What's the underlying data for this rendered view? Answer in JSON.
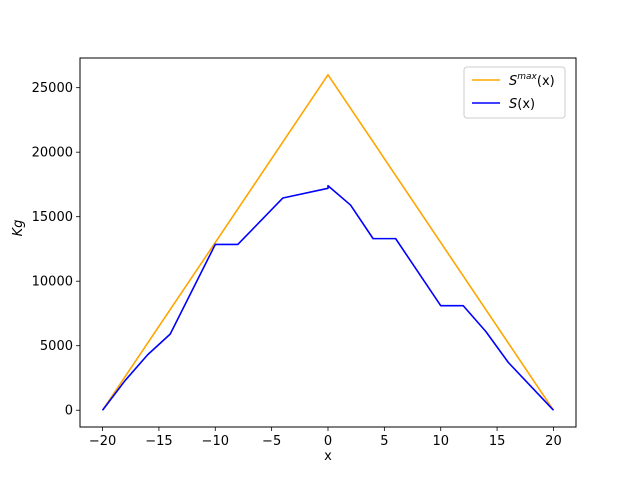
{
  "chart_data": {
    "type": "line",
    "title": "",
    "xlabel": "x",
    "ylabel": "Kg",
    "xlim": [
      -22,
      22
    ],
    "ylim": [
      -1300,
      27300
    ],
    "xticks": [
      -20,
      -15,
      -10,
      -5,
      0,
      5,
      10,
      15,
      20
    ],
    "yticks": [
      0,
      5000,
      10000,
      15000,
      20000,
      25000
    ],
    "grid": false,
    "legend_position": "top-right",
    "series": [
      {
        "name": "S^max(x)",
        "legend": {
          "base": "S",
          "sup": "max",
          "tail": "(x)"
        },
        "color": "#ffa500",
        "x": [
          -20,
          0,
          20
        ],
        "y": [
          0,
          26000,
          0
        ]
      },
      {
        "name": "S(x)",
        "legend": {
          "base": "S",
          "sup": "",
          "tail": "(x)"
        },
        "color": "#0000ff",
        "x": [
          -20,
          -18,
          -16,
          -14,
          -10,
          -8,
          -4,
          0,
          0,
          2,
          4,
          6,
          10,
          12,
          14,
          16,
          20
        ],
        "y": [
          0,
          2300,
          4300,
          5900,
          12850,
          12850,
          16450,
          17200,
          17400,
          15900,
          13300,
          13300,
          8100,
          8100,
          6100,
          3700,
          0
        ]
      }
    ]
  }
}
